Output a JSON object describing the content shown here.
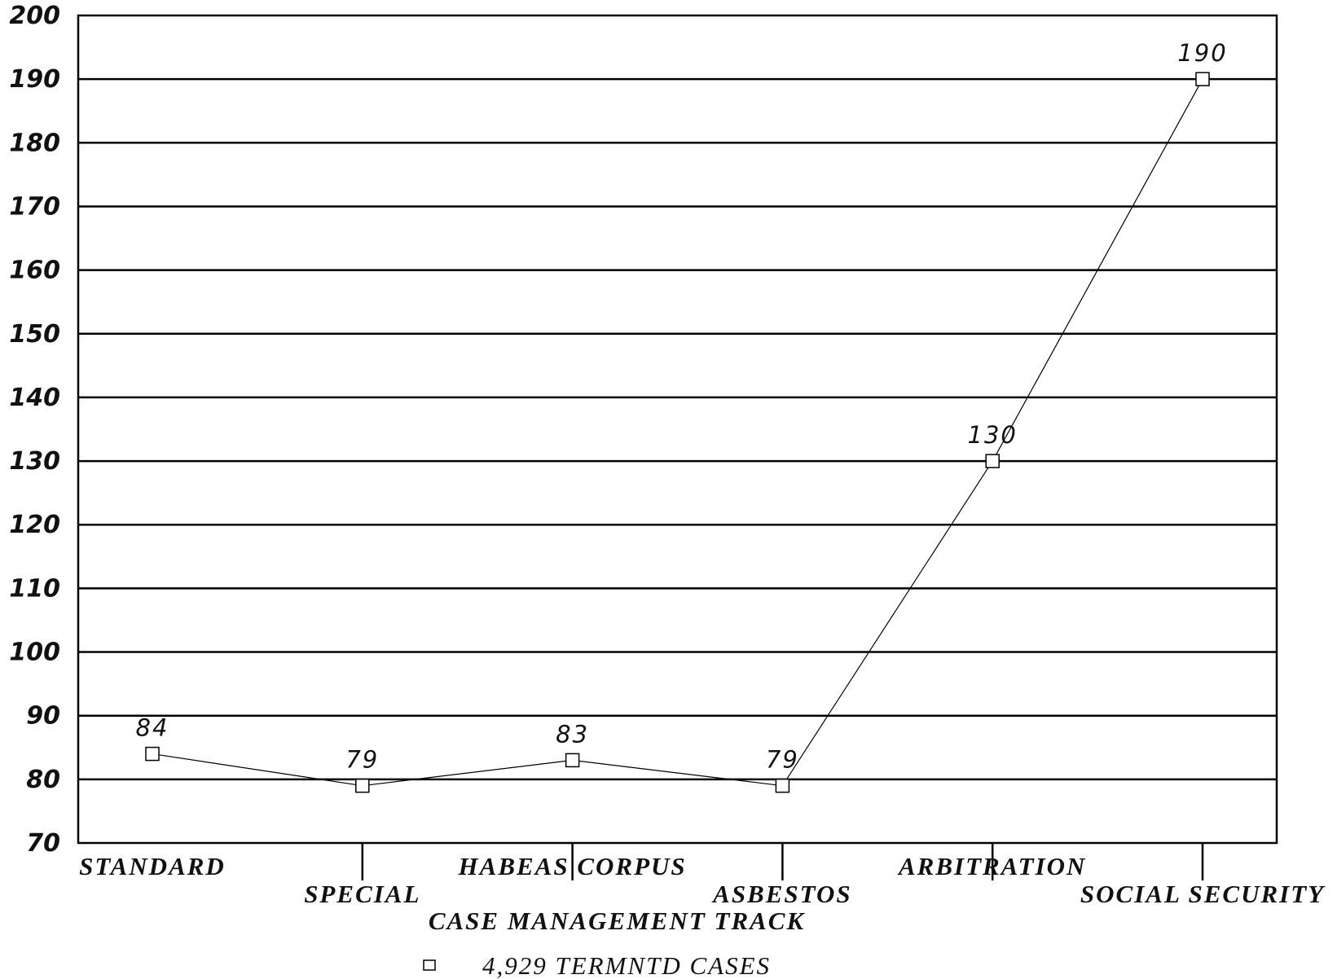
{
  "chart_data": {
    "type": "line",
    "categories": [
      "STANDARD",
      "SPECIAL",
      "HABEAS CORPUS",
      "ASBESTOS",
      "ARBITRATION",
      "SOCIAL SECURITY"
    ],
    "series": [
      {
        "name": "4,929 TERMNTD CASES",
        "values": [
          84,
          79,
          83,
          79,
          130,
          190
        ]
      }
    ],
    "data_labels": [
      "84",
      "79",
      "83",
      "79",
      "130",
      "190"
    ],
    "xlabel": "CASE MANAGEMENT TRACK",
    "ylabel": "",
    "ylim": [
      70,
      200
    ],
    "yticks": [
      "70",
      "80",
      "90",
      "100",
      "110",
      "120",
      "130",
      "140",
      "150",
      "160",
      "170",
      "180",
      "190",
      "200"
    ],
    "grid": true,
    "legend_position": "bottom",
    "marker": "square",
    "colors": {
      "line": "#000000",
      "grid": "#000000",
      "background": "#ffffff"
    }
  }
}
